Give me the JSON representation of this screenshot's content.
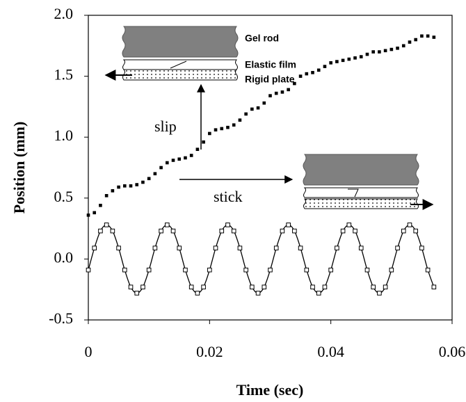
{
  "chart_data": {
    "type": "scatter",
    "xlabel": "Time (sec)",
    "ylabel": "Position (mm)",
    "xlim": [
      0,
      0.06
    ],
    "xticks": [
      0,
      0.02,
      0.04,
      0.06
    ],
    "ylim": [
      -0.5,
      2.0
    ],
    "yticks": [
      -0.5,
      {
        "value": 0,
        "label": "0.0"
      },
      0.5,
      {
        "value": 1,
        "label": "1.0"
      },
      1.5,
      {
        "value": 2,
        "label": "2.0"
      }
    ],
    "x": [
      0,
      0.001,
      0.002,
      0.003,
      0.004,
      0.005,
      0.006,
      0.007,
      0.008,
      0.009,
      0.01,
      0.011,
      0.012,
      0.013,
      0.014,
      0.015,
      0.016,
      0.017,
      0.018,
      0.019,
      0.02,
      0.021,
      0.022,
      0.023,
      0.024,
      0.025,
      0.026,
      0.027,
      0.028,
      0.029,
      0.03,
      0.031,
      0.032,
      0.033,
      0.034,
      0.035,
      0.036,
      0.037,
      0.038,
      0.039,
      0.04,
      0.041,
      0.042,
      0.043,
      0.044,
      0.045,
      0.046,
      0.047,
      0.048,
      0.049,
      0.05,
      0.051,
      0.052,
      0.053,
      0.054,
      0.055,
      0.056,
      0.057
    ],
    "series": [
      {
        "color": "#000000",
        "marker": "filled-square",
        "line": false,
        "values": [
          0.36,
          0.38,
          0.44,
          0.52,
          0.56,
          0.59,
          0.6,
          0.6,
          0.61,
          0.63,
          0.66,
          0.7,
          0.75,
          0.79,
          0.81,
          0.82,
          0.83,
          0.85,
          0.9,
          0.96,
          1.03,
          1.06,
          1.07,
          1.08,
          1.1,
          1.14,
          1.19,
          1.23,
          1.24,
          1.28,
          1.34,
          1.36,
          1.37,
          1.39,
          1.44,
          1.5,
          1.52,
          1.53,
          1.55,
          1.58,
          1.61,
          1.62,
          1.63,
          1.64,
          1.65,
          1.66,
          1.68,
          1.7,
          1.7,
          1.71,
          1.72,
          1.73,
          1.75,
          1.78,
          1.8,
          1.83,
          1.83,
          1.82
        ]
      },
      {
        "color": "#000000",
        "marker": "open-square",
        "line": true,
        "values": [
          -0.09,
          0.09,
          0.23,
          0.28,
          0.23,
          0.09,
          -0.09,
          -0.23,
          -0.28,
          -0.23,
          -0.09,
          0.09,
          0.23,
          0.28,
          0.23,
          0.09,
          -0.09,
          -0.23,
          -0.28,
          -0.23,
          -0.09,
          0.09,
          0.23,
          0.28,
          0.23,
          0.09,
          -0.09,
          -0.23,
          -0.28,
          -0.23,
          -0.09,
          0.09,
          0.23,
          0.28,
          0.23,
          0.09,
          -0.09,
          -0.23,
          -0.28,
          -0.23,
          -0.09,
          0.09,
          0.23,
          0.28,
          0.23,
          0.09,
          -0.09,
          -0.23,
          -0.28,
          -0.23,
          -0.09,
          0.09,
          0.23,
          0.28,
          0.23,
          0.09,
          -0.09,
          -0.23
        ]
      }
    ],
    "inset_labels": [
      "Gel rod",
      "Elastic film",
      "Rigid plate"
    ],
    "annotations": [
      "slip",
      "stick"
    ]
  }
}
